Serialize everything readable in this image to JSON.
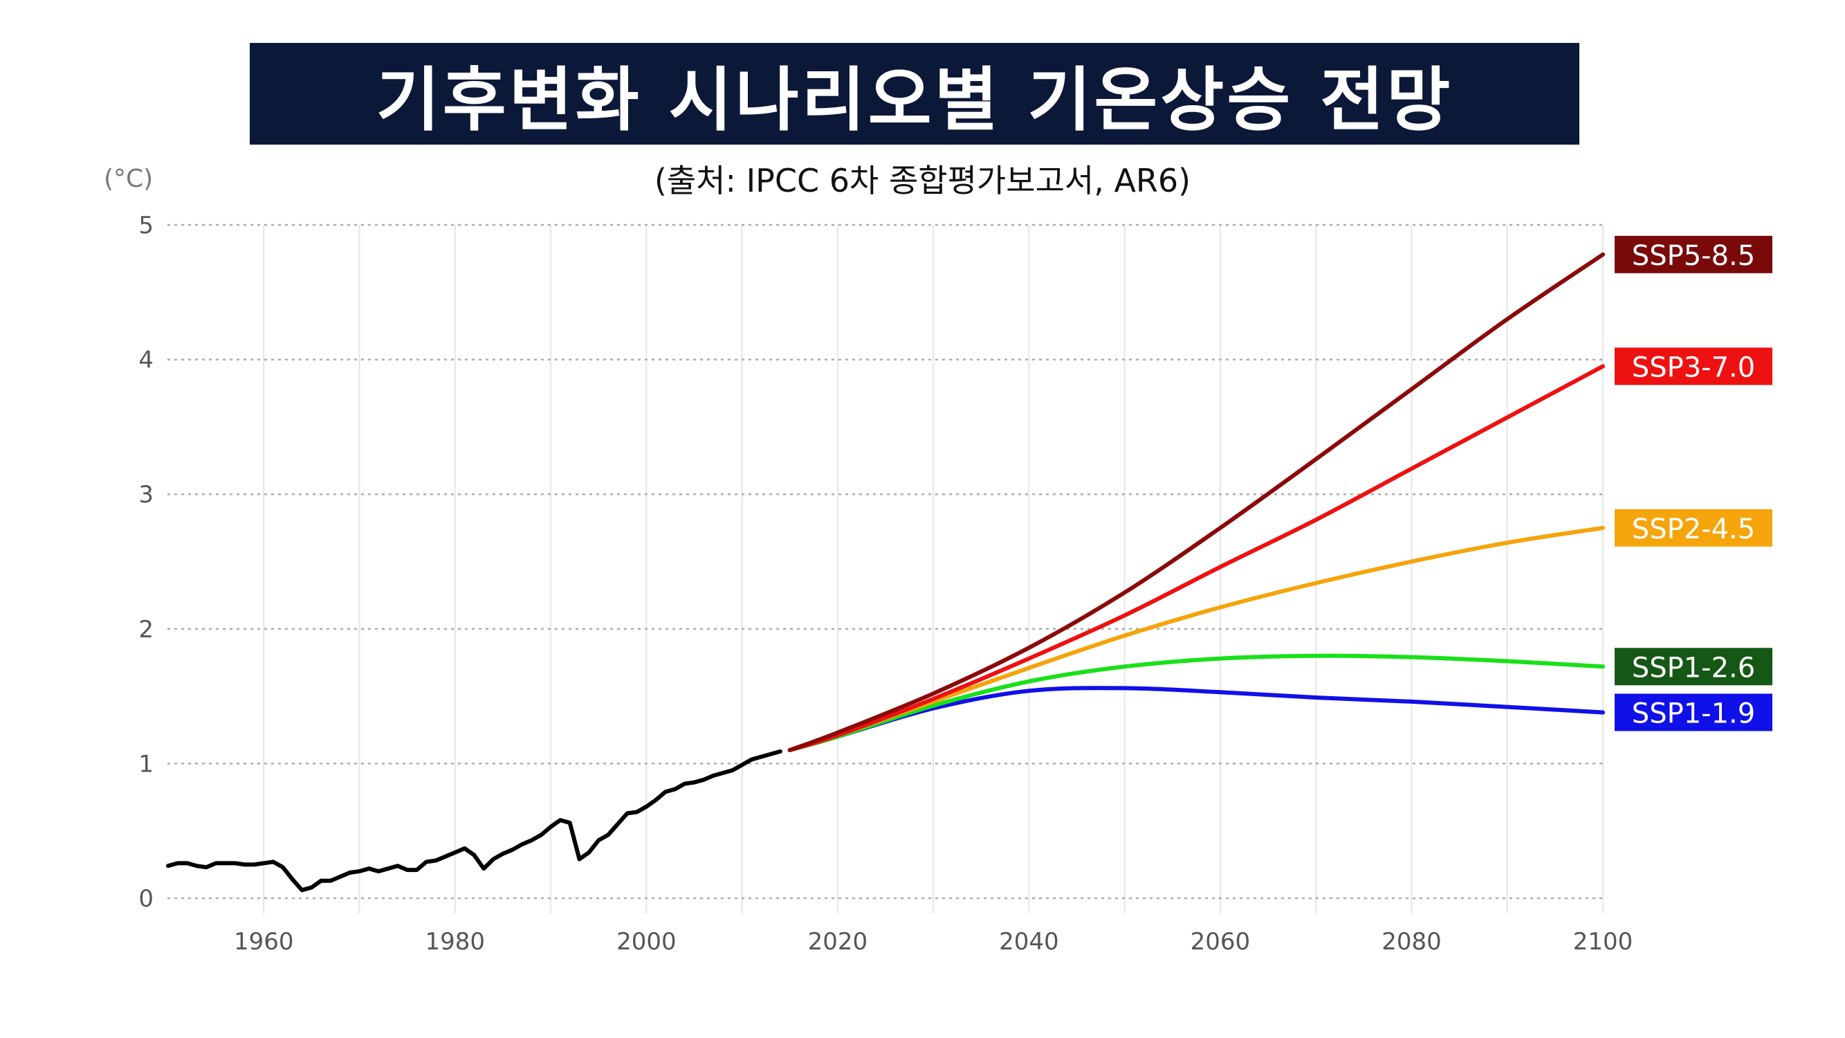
{
  "header": {
    "title": "기후변화 시나리오별 기온상승 전망",
    "subtitle": "(출처: IPCC 6차 종합평가보고서, AR6)"
  },
  "chart_data": {
    "type": "line",
    "title": "기후변화 시나리오별 기온상승 전망",
    "subtitle": "(출처: IPCC 6차 종합평가보고서, AR6)",
    "ylabel": "(°C)",
    "xlabel": "",
    "xlim": [
      1950,
      2120
    ],
    "ylim": [
      -0.15,
      5
    ],
    "xticks": [
      1960,
      1980,
      2000,
      2020,
      2040,
      2060,
      2080,
      2100
    ],
    "yticks": [
      0,
      1,
      2,
      3,
      4,
      5
    ],
    "grid": {
      "horizontal": "dotted",
      "vertical": "solid-light"
    },
    "legend": "direct labels at line ends (right)",
    "historical": {
      "color": "#000000",
      "x": [
        1950,
        1951,
        1952,
        1953,
        1954,
        1955,
        1956,
        1957,
        1958,
        1959,
        1960,
        1961,
        1962,
        1963,
        1964,
        1965,
        1966,
        1967,
        1968,
        1969,
        1970,
        1971,
        1972,
        1973,
        1974,
        1975,
        1976,
        1977,
        1978,
        1979,
        1980,
        1981,
        1982,
        1983,
        1984,
        1985,
        1986,
        1987,
        1988,
        1989,
        1990,
        1991,
        1992,
        1993,
        1994,
        1995,
        1996,
        1997,
        1998,
        1999,
        2000,
        2001,
        2002,
        2003,
        2004,
        2005,
        2006,
        2007,
        2008,
        2009,
        2010,
        2011,
        2012,
        2013,
        2014
      ],
      "y": [
        0.24,
        0.26,
        0.26,
        0.24,
        0.23,
        0.26,
        0.26,
        0.26,
        0.25,
        0.25,
        0.26,
        0.27,
        0.23,
        0.14,
        0.06,
        0.08,
        0.13,
        0.13,
        0.16,
        0.19,
        0.2,
        0.22,
        0.2,
        0.22,
        0.24,
        0.21,
        0.21,
        0.27,
        0.28,
        0.31,
        0.34,
        0.37,
        0.32,
        0.22,
        0.29,
        0.33,
        0.36,
        0.4,
        0.43,
        0.47,
        0.53,
        0.58,
        0.56,
        0.29,
        0.34,
        0.43,
        0.47,
        0.55,
        0.63,
        0.64,
        0.68,
        0.73,
        0.79,
        0.81,
        0.85,
        0.86,
        0.88,
        0.91,
        0.93,
        0.95,
        0.99,
        1.03,
        1.05,
        1.07,
        1.09
      ]
    },
    "series": [
      {
        "name": "SSP5-8.5",
        "color": "#8b0a0a",
        "x": [
          2015,
          2020,
          2030,
          2040,
          2050,
          2060,
          2070,
          2080,
          2090,
          2100
        ],
        "y": [
          1.1,
          1.23,
          1.52,
          1.86,
          2.27,
          2.75,
          3.26,
          3.78,
          4.3,
          4.78
        ]
      },
      {
        "name": "SSP3-7.0",
        "color": "#ee1111",
        "x": [
          2015,
          2020,
          2030,
          2040,
          2050,
          2060,
          2070,
          2080,
          2090,
          2100
        ],
        "y": [
          1.1,
          1.21,
          1.48,
          1.78,
          2.1,
          2.46,
          2.81,
          3.19,
          3.57,
          3.95
        ]
      },
      {
        "name": "SSP2-4.5",
        "color": "#f5a40c",
        "x": [
          2015,
          2020,
          2030,
          2040,
          2050,
          2060,
          2070,
          2080,
          2090,
          2100
        ],
        "y": [
          1.1,
          1.21,
          1.46,
          1.71,
          1.95,
          2.16,
          2.34,
          2.5,
          2.64,
          2.75
        ]
      },
      {
        "name": "SSP1-2.6",
        "color": "#1ae01a",
        "x": [
          2015,
          2020,
          2030,
          2040,
          2050,
          2060,
          2070,
          2080,
          2090,
          2100
        ],
        "y": [
          1.1,
          1.2,
          1.43,
          1.61,
          1.72,
          1.78,
          1.8,
          1.79,
          1.76,
          1.72
        ]
      },
      {
        "name": "SSP1-1.9",
        "color": "#1010e8",
        "x": [
          2015,
          2020,
          2030,
          2040,
          2050,
          2060,
          2070,
          2080,
          2090,
          2100
        ],
        "y": [
          1.1,
          1.2,
          1.41,
          1.54,
          1.56,
          1.53,
          1.49,
          1.46,
          1.42,
          1.38
        ]
      }
    ],
    "label_backgrounds": {
      "SSP5-8.5": "#7a0a0a",
      "SSP3-7.0": "#ee1111",
      "SSP2-4.5": "#f5a40c",
      "SSP1-2.6": "#155815",
      "SSP1-1.9": "#1010e8"
    }
  }
}
